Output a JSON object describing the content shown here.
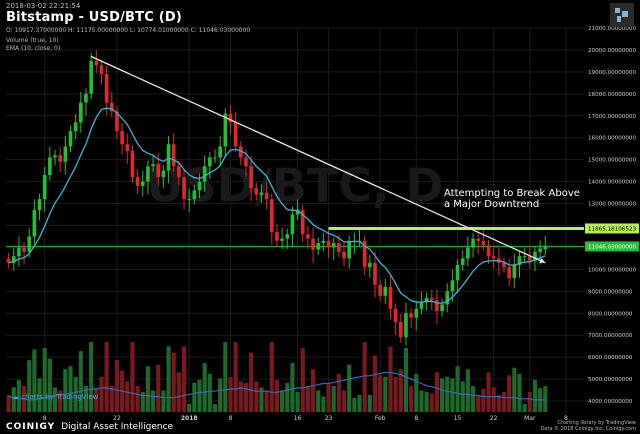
{
  "header": {
    "timestamp": "2018-03-02 22:21:54",
    "title": "Bitstamp - USD/BTC (D)",
    "ohlc": "O: 10917.37000000 H: 11175.00000000 L: 10774.01000000 C: 11046.03000000",
    "volume_label": "Volume (true, 10)",
    "ema_label": "EMA (10, close, 0)"
  },
  "watermark": "USD/BTC, D",
  "annotation": "Attempting to Break Above a Major Downtrend",
  "tv_badge": "charts by TradingView",
  "footer": {
    "brand": "COINIGY",
    "tagline": "Digital Asset Intelligence",
    "right_line1": "Charting library by TradingView",
    "right_line2": "Data © 2018 Coinigy Inc. Coinigy.com"
  },
  "colors": {
    "up": "#22c033",
    "down": "#e0282e",
    "ema": "#3cb6d8",
    "trendline": "#e6e6e6",
    "resistance": "#b6f24a",
    "price_line": "#22c033",
    "vol_up": "#1d6b2a",
    "vol_down": "#7a1a1e"
  },
  "chart_data": {
    "type": "candlestick",
    "ylim": [
      3500,
      21000
    ],
    "y_ticks": [
      4000,
      5000,
      6000,
      7000,
      8000,
      9000,
      10000,
      11000,
      12000,
      13000,
      14000,
      15000,
      16000,
      17000,
      18000,
      19000,
      20000,
      21000
    ],
    "y_tick_labels": [
      "4000.00000000",
      "5000.00000000",
      "6000.00000000",
      "7000.00000000",
      "8000.00000000",
      "9000.00000000",
      "10000.00000000",
      "11000.00000000",
      "12000.00000000",
      "13000.00000000",
      "14000.00000000",
      "15000.00000000",
      "16000.00000000",
      "17000.00000000",
      "18000.00000000",
      "19000.00000000",
      "20000.00000000",
      "21000.00000000"
    ],
    "x_ticks": [
      {
        "i": 7,
        "label": "8"
      },
      {
        "i": 21,
        "label": "22"
      },
      {
        "i": 35,
        "label": "2018"
      },
      {
        "i": 43,
        "label": "8"
      },
      {
        "i": 56,
        "label": "16"
      },
      {
        "i": 62,
        "label": "23"
      },
      {
        "i": 72,
        "label": "Feb"
      },
      {
        "i": 79,
        "label": "8"
      },
      {
        "i": 87,
        "label": "15"
      },
      {
        "i": 94,
        "label": "22"
      },
      {
        "i": 101,
        "label": "Mar"
      },
      {
        "i": 108,
        "label": "8"
      }
    ],
    "price_labels": [
      {
        "value": 11865.18106523,
        "label": "11865.18106523"
      },
      {
        "value": 11046.03,
        "label": "11046.03000000"
      }
    ],
    "trendline": {
      "from": {
        "i": 16,
        "v": 19700
      },
      "to": {
        "i": 104,
        "v": 10300
      }
    },
    "resistance_level": 11865.18,
    "ema_period": 10,
    "closes": [
      10300,
      10600,
      11000,
      10800,
      11500,
      12700,
      13200,
      14300,
      15100,
      15200,
      14900,
      15600,
      16300,
      16700,
      17600,
      18000,
      19500,
      19300,
      18900,
      17600,
      17200,
      16300,
      15700,
      15400,
      14200,
      13800,
      14000,
      14700,
      14800,
      14200,
      14500,
      15700,
      14700,
      14200,
      13200,
      13200,
      13600,
      14000,
      14700,
      15100,
      15100,
      15600,
      17100,
      16700,
      15600,
      15100,
      14700,
      13700,
      13400,
      13500,
      13200,
      11700,
      11300,
      11400,
      11600,
      12500,
      12700,
      11600,
      11400,
      10900,
      11200,
      11300,
      11000,
      11200,
      10800,
      10500,
      11300,
      11300,
      11300,
      10100,
      10300,
      9300,
      8800,
      9200,
      8200,
      7600,
      6900,
      8000,
      7800,
      8200,
      8500,
      8700,
      8600,
      8100,
      8400,
      9000,
      9500,
      10200,
      10500,
      11000,
      11400,
      11300,
      11100,
      10600,
      10500,
      10300,
      10100,
      9600,
      10200,
      10600,
      10600,
      10400,
      10800,
      10950,
      11046
    ],
    "opens": [
      10500,
      10300,
      10600,
      11000,
      10800,
      11500,
      12700,
      13200,
      14300,
      15100,
      15200,
      14900,
      15600,
      16300,
      16700,
      17600,
      18000,
      19500,
      19300,
      18900,
      17600,
      17200,
      16300,
      15700,
      15400,
      14200,
      13800,
      14000,
      14700,
      14800,
      14200,
      14500,
      15700,
      14700,
      14200,
      13200,
      13200,
      13600,
      14000,
      14700,
      15100,
      15100,
      15600,
      17100,
      16700,
      15600,
      15100,
      14700,
      13700,
      13400,
      13500,
      13200,
      11700,
      11300,
      11400,
      11600,
      12500,
      12700,
      11600,
      11400,
      10900,
      11200,
      11300,
      11000,
      11200,
      10800,
      10500,
      11300,
      11300,
      11300,
      10100,
      10300,
      9300,
      8800,
      9200,
      8200,
      7600,
      6900,
      8000,
      7800,
      8200,
      8500,
      8700,
      8600,
      8100,
      8400,
      9000,
      9500,
      10200,
      10500,
      11000,
      11400,
      11300,
      11100,
      10600,
      10500,
      10300,
      10100,
      9600,
      10200,
      10600,
      10600,
      10400,
      10800,
      10917
    ],
    "volume_line": [
      4200,
      4150,
      4100,
      4100,
      4050,
      4050,
      4100,
      4150,
      4200,
      4250,
      4300,
      4300,
      4350,
      4400,
      4450,
      4500,
      4550,
      4550,
      4600,
      4600,
      4550,
      4500,
      4450,
      4400,
      4350,
      4300,
      4250,
      4250,
      4200,
      4200,
      4150,
      4150,
      4150,
      4200,
      4250,
      4300,
      4350,
      4400,
      4400,
      4450,
      4450,
      4500,
      4500,
      4550,
      4550,
      4600,
      4550,
      4500,
      4450,
      4450,
      4450,
      4400,
      4400,
      4450,
      4500,
      4550,
      4600,
      4600,
      4650,
      4700,
      4750,
      4800,
      4800,
      4850,
      4900,
      4950,
      5000,
      5050,
      5100,
      5150,
      5150,
      5200,
      5250,
      5300,
      5300,
      5250,
      5200,
      5100,
      5000,
      4900,
      4800,
      4700,
      4650,
      4600,
      4500,
      4450,
      4400,
      4350,
      4300,
      4300,
      4250,
      4250,
      4200,
      4200,
      4200,
      4200,
      4150,
      4150,
      4150,
      4100,
      4100,
      4100,
      4050,
      4050,
      4050
    ]
  }
}
